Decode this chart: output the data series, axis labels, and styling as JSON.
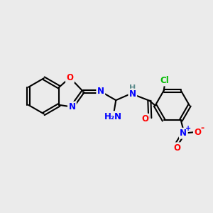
{
  "background_color": "#ebebeb",
  "bond_color": "#000000",
  "atom_colors": {
    "N": "#0000ff",
    "O": "#ff0000",
    "Cl": "#00bb00",
    "C": "#000000",
    "H": "#5a8a8a"
  }
}
